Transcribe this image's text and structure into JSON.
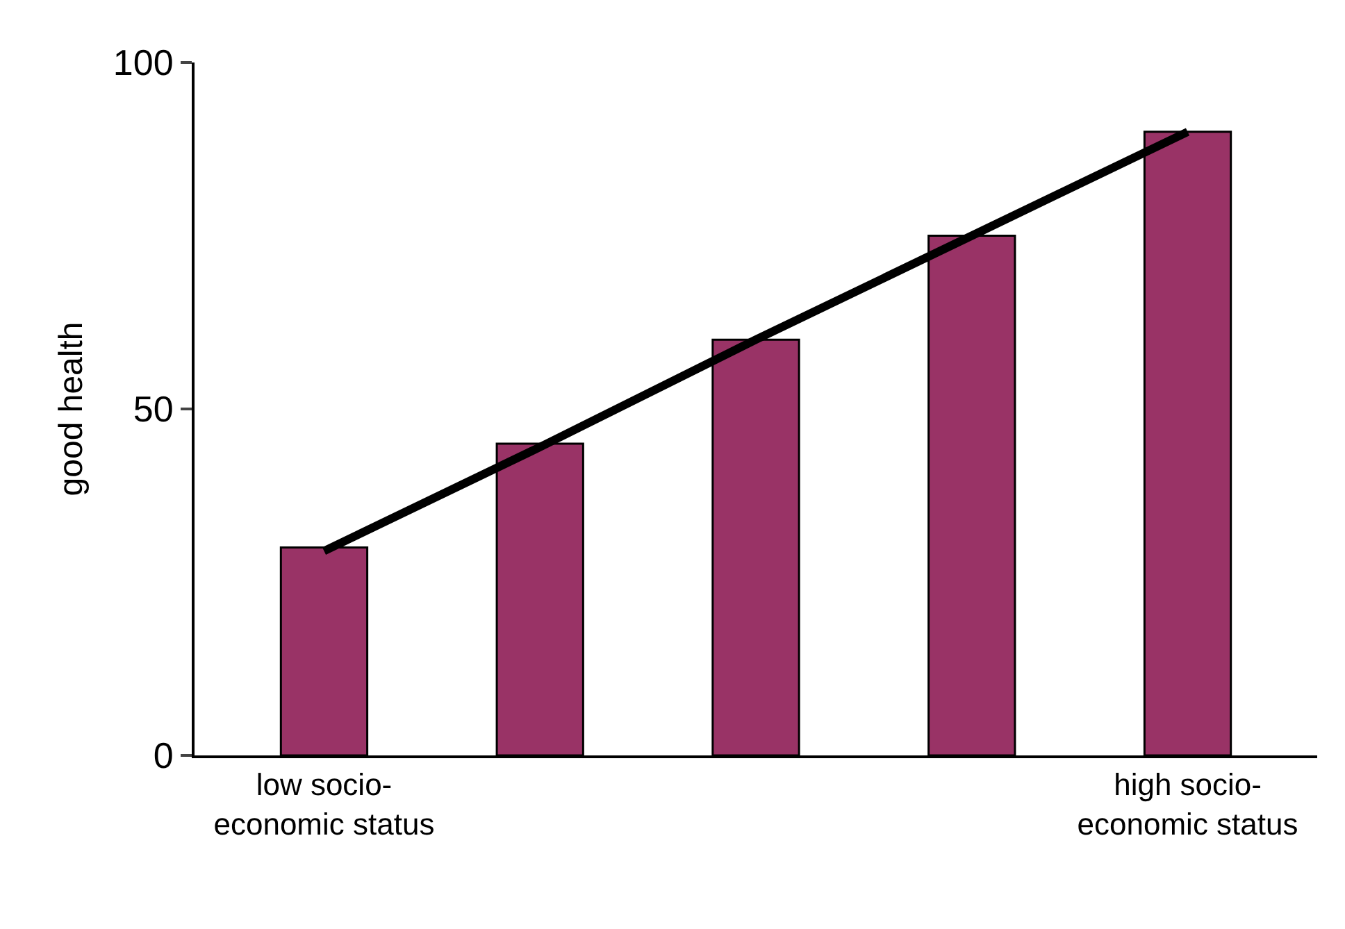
{
  "chart_data": {
    "type": "bar",
    "ylabel": "good health",
    "categories": [
      "low socio-\neconomic status",
      null,
      null,
      null,
      "high socio-\neconomic status"
    ],
    "series": [
      {
        "color": "#993366",
        "values": [
          30,
          45,
          60,
          75,
          90
        ]
      },
      {
        "type": "line",
        "color": "#000000",
        "values": [
          29.5,
          44.5,
          60,
          75,
          90
        ]
      }
    ],
    "ylim": [
      0,
      100
    ],
    "yticks": [
      0,
      50,
      100
    ]
  }
}
